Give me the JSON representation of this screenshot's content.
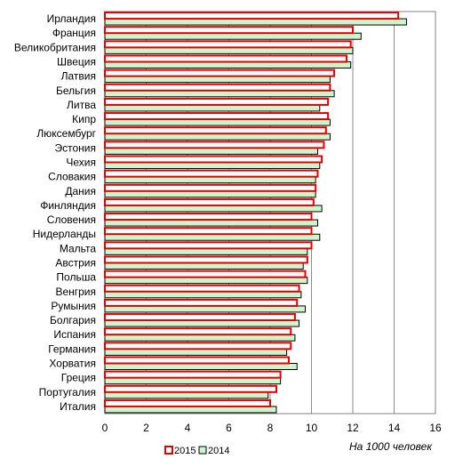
{
  "chart_data": {
    "type": "bar",
    "orientation": "horizontal",
    "categories": [
      "Ирландия",
      "Франция",
      "Великобритания",
      "Швеция",
      "Латвия",
      "Бельгия",
      "Литва",
      "Кипр",
      "Люксембург",
      "Эстония",
      "Чехия",
      "Словакия",
      "Дания",
      "Финляндия",
      "Словения",
      "Нидерланды",
      "Мальта",
      "Австрия",
      "Польша",
      "Венгрия",
      "Румыния",
      "Болгария",
      "Испания",
      "Германия",
      "Хорватия",
      "Греция",
      "Португалия",
      "Италия"
    ],
    "series": [
      {
        "name": "2015",
        "color": "#e00000",
        "fill": "#ffffff",
        "values": [
          14.2,
          12.0,
          11.9,
          11.7,
          11.1,
          10.9,
          10.8,
          10.8,
          10.7,
          10.6,
          10.5,
          10.3,
          10.2,
          10.1,
          10.0,
          10.0,
          10.0,
          9.8,
          9.7,
          9.4,
          9.3,
          9.2,
          9.0,
          9.0,
          8.9,
          8.5,
          8.3,
          8.0
        ]
      },
      {
        "name": "2014",
        "color": "#000000",
        "fill": "#ccf5cc",
        "values": [
          14.6,
          12.4,
          12.0,
          11.9,
          10.9,
          11.1,
          10.4,
          10.9,
          10.9,
          10.3,
          10.4,
          10.2,
          10.2,
          10.5,
          10.3,
          10.4,
          9.8,
          9.6,
          9.8,
          9.5,
          9.7,
          9.4,
          9.2,
          8.8,
          9.3,
          8.5,
          7.9,
          8.3
        ]
      }
    ],
    "xlim": [
      0,
      16
    ],
    "xticks": [
      0,
      2,
      4,
      6,
      8,
      10,
      12,
      14,
      16
    ],
    "unit_label": "На 1000 человек",
    "grid": "vertical",
    "legend_position": "bottom"
  }
}
